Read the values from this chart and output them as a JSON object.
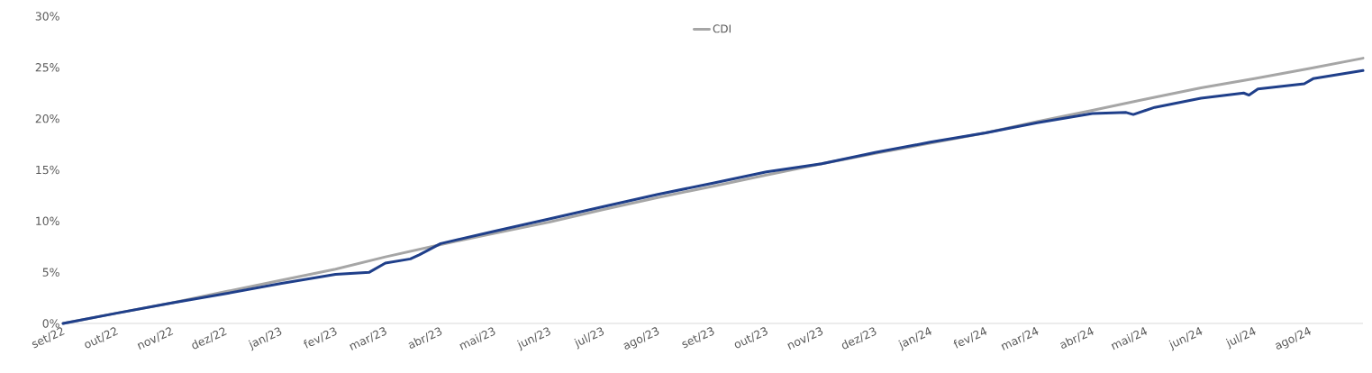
{
  "chart_data": {
    "type": "line",
    "legend": "top",
    "grid": false,
    "line_style": "solid",
    "marker": "none",
    "x": [
      "2022-09-01",
      "2022-10-01",
      "2022-11-01",
      "2022-12-01",
      "2023-01-01",
      "2023-02-01",
      "2023-02-20",
      "2023-02-26",
      "2023-03-01",
      "2023-03-15",
      "2023-03-20",
      "2023-04-01",
      "2023-05-01",
      "2023-06-01",
      "2023-07-01",
      "2023-08-01",
      "2023-09-01",
      "2023-10-01",
      "2023-11-01",
      "2023-12-01",
      "2024-01-01",
      "2024-02-01",
      "2024-03-01",
      "2024-04-01",
      "2024-04-20",
      "2024-04-24",
      "2024-05-06",
      "2024-06-01",
      "2024-06-25",
      "2024-06-28",
      "2024-07-03",
      "2024-07-29",
      "2024-08-03",
      "2024-08-31"
    ],
    "series": [
      {
        "color": "#1f3f8a",
        "values": [
          0,
          1.0,
          2.0,
          2.9,
          3.9,
          4.8,
          5.0,
          5.6,
          5.9,
          6.3,
          6.7,
          7.8,
          9.0,
          10.2,
          11.4,
          12.6,
          13.7,
          14.8,
          15.6,
          16.7,
          17.7,
          18.6,
          19.6,
          20.5,
          20.6,
          20.4,
          21.1,
          22.0,
          22.5,
          22.3,
          22.9,
          23.4,
          23.9,
          24.7
        ]
      },
      {
        "name": "CDI",
        "color": "#a6a6a6",
        "x": [
          "2022-09-01",
          "2022-10-01",
          "2022-11-01",
          "2022-12-01",
          "2023-01-01",
          "2023-02-01",
          "2023-03-01",
          "2023-04-01",
          "2023-05-01",
          "2023-06-01",
          "2023-07-01",
          "2023-08-01",
          "2023-09-01",
          "2023-10-01",
          "2023-11-01",
          "2023-12-01",
          "2024-01-01",
          "2024-02-01",
          "2024-03-01",
          "2024-04-01",
          "2024-05-01",
          "2024-06-01",
          "2024-07-01",
          "2024-08-01",
          "2024-08-31"
        ],
        "values": [
          0,
          1.0,
          2.0,
          3.1,
          4.2,
          5.3,
          6.5,
          7.7,
          8.8,
          9.9,
          11.1,
          12.3,
          13.4,
          14.5,
          15.6,
          16.6,
          17.6,
          18.6,
          19.7,
          20.8,
          21.9,
          23.0,
          23.9,
          24.9,
          25.9
        ]
      }
    ],
    "xlim": [
      "2022-09-01",
      "2024-08-31"
    ],
    "xticks": [
      {
        "value": "2022-09-01",
        "label": "set/22"
      },
      {
        "value": "2022-10-01",
        "label": "out/22"
      },
      {
        "value": "2022-11-01",
        "label": "nov/22"
      },
      {
        "value": "2022-12-01",
        "label": "dez/22"
      },
      {
        "value": "2023-01-01",
        "label": "jan/23"
      },
      {
        "value": "2023-02-01",
        "label": "fev/23"
      },
      {
        "value": "2023-03-01",
        "label": "mar/23"
      },
      {
        "value": "2023-04-01",
        "label": "abr/23"
      },
      {
        "value": "2023-05-01",
        "label": "mai/23"
      },
      {
        "value": "2023-06-01",
        "label": "jun/23"
      },
      {
        "value": "2023-07-01",
        "label": "jul/23"
      },
      {
        "value": "2023-08-01",
        "label": "ago/23"
      },
      {
        "value": "2023-09-01",
        "label": "set/23"
      },
      {
        "value": "2023-10-01",
        "label": "out/23"
      },
      {
        "value": "2023-11-01",
        "label": "nov/23"
      },
      {
        "value": "2023-12-01",
        "label": "dez/23"
      },
      {
        "value": "2024-01-01",
        "label": "jan/24"
      },
      {
        "value": "2024-02-01",
        "label": "fev/24"
      },
      {
        "value": "2024-03-01",
        "label": "mar/24"
      },
      {
        "value": "2024-04-01",
        "label": "abr/24"
      },
      {
        "value": "2024-05-01",
        "label": "mai/24"
      },
      {
        "value": "2024-06-01",
        "label": "jun/24"
      },
      {
        "value": "2024-07-01",
        "label": "jul/24"
      },
      {
        "value": "2024-08-01",
        "label": "ago/24"
      }
    ],
    "ylim": [
      0,
      30
    ],
    "yticks": [
      {
        "value": 0,
        "label": "0%"
      },
      {
        "value": 5,
        "label": "5%"
      },
      {
        "value": 10,
        "label": "10%"
      },
      {
        "value": 15,
        "label": "15%"
      },
      {
        "value": 20,
        "label": "20%"
      },
      {
        "value": 25,
        "label": "25%"
      },
      {
        "value": 30,
        "label": "30%"
      }
    ]
  }
}
